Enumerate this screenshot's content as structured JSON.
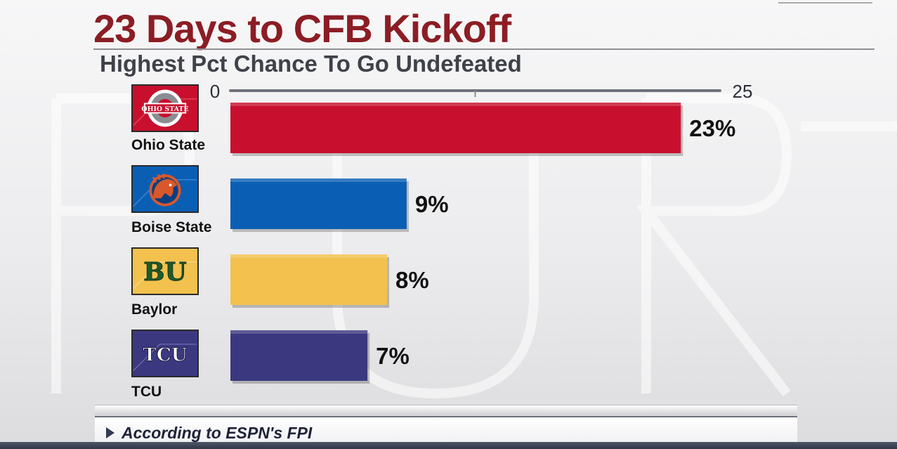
{
  "header": {
    "title": "23 Days to CFB Kickoff",
    "subtitle": "Highest Pct Chance To Go Undefeated"
  },
  "footer": {
    "note": "According to ESPN's FPI"
  },
  "colors": {
    "title": "#8c1d24",
    "ohio_state": "#c8102e",
    "boise_state": "#0a5fb4",
    "baylor": "#f2c14e",
    "tcu": "#3b3880"
  },
  "teams": [
    {
      "name": "Ohio State",
      "logo_icon": "ohio-state-logo-icon",
      "logo_text": "OHIO STATE",
      "pct_label": "23%"
    },
    {
      "name": "Boise State",
      "logo_icon": "boise-state-bronco-logo-icon",
      "pct_label": "9%"
    },
    {
      "name": "Baylor",
      "logo_icon": "baylor-bu-logo-icon",
      "logo_text": "BU",
      "pct_label": "8%"
    },
    {
      "name": "TCU",
      "logo_icon": "tcu-logo-icon",
      "logo_text": "TCU",
      "pct_label": "7%"
    }
  ],
  "chart_data": {
    "type": "bar",
    "orientation": "horizontal",
    "title": "23 Days to CFB Kickoff",
    "subtitle": "Highest Pct Chance To Go Undefeated",
    "categories": [
      "Ohio State",
      "Boise State",
      "Baylor",
      "TCU"
    ],
    "values": [
      23,
      9,
      8,
      7
    ],
    "value_labels": [
      "23%",
      "9%",
      "8%",
      "7%"
    ],
    "bar_colors": [
      "#c8102e",
      "#0a5fb4",
      "#f2c14e",
      "#3b3880"
    ],
    "xlim": [
      0,
      25
    ],
    "tick_labels": [
      "0",
      "25"
    ],
    "xlabel": "",
    "ylabel": "",
    "grid": false,
    "legend": "none"
  }
}
